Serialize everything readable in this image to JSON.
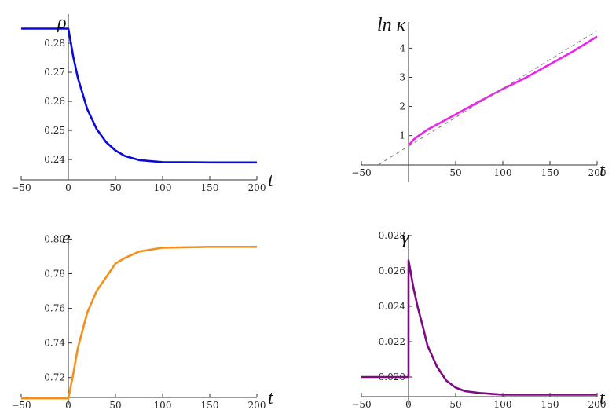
{
  "chart_data": [
    {
      "type": "line",
      "title": "",
      "ylabel": "ρ",
      "xlabel": "t",
      "xlim": [
        -50,
        200
      ],
      "ylim": [
        0.233,
        0.29
      ],
      "xticks": [
        "−50",
        "0",
        "50",
        "100",
        "150",
        "200"
      ],
      "yticks": [
        "0.24",
        "0.25",
        "0.26",
        "0.27",
        "0.28"
      ],
      "series": [
        {
          "color": "#0a0adb",
          "x": [
            -50,
            0,
            5,
            10,
            20,
            30,
            40,
            50,
            60,
            75,
            100,
            150,
            200
          ],
          "y": [
            0.285,
            0.285,
            0.2757,
            0.2682,
            0.2574,
            0.2505,
            0.246,
            0.2431,
            0.2412,
            0.2398,
            0.2391,
            0.239,
            0.239
          ]
        }
      ]
    },
    {
      "type": "line",
      "title": "",
      "ylabel": "ln κ",
      "xlabel": "t",
      "xlim": [
        -50,
        200
      ],
      "ylim": [
        -0.6,
        4.9
      ],
      "xticks": [
        "−50",
        "50",
        "100",
        "150",
        "200"
      ],
      "yticks": [
        "1",
        "2",
        "3",
        "4"
      ],
      "series": [
        {
          "color": "#ee22ee",
          "x": [
            0,
            5,
            10,
            20,
            30,
            50,
            75,
            100,
            125,
            150,
            175,
            200
          ],
          "y": [
            0.65,
            0.85,
            0.98,
            1.2,
            1.38,
            1.73,
            2.17,
            2.6,
            3.0,
            3.45,
            3.9,
            4.4
          ]
        },
        {
          "color": "#888888",
          "dashed": true,
          "x": [
            -32,
            200
          ],
          "y": [
            0.0,
            4.6
          ]
        }
      ]
    },
    {
      "type": "line",
      "title": "",
      "ylabel": "e",
      "xlabel": "t",
      "xlim": [
        -50,
        200
      ],
      "ylim": [
        0.704,
        0.802
      ],
      "xticks": [
        "−50",
        "0",
        "50",
        "100",
        "150",
        "200"
      ],
      "yticks": [
        "0.72",
        "0.74",
        "0.76",
        "0.78",
        "0.80"
      ],
      "series": [
        {
          "color": "#f39019",
          "x": [
            -50,
            0,
            5,
            10,
            20,
            30,
            40,
            50,
            60,
            75,
            100,
            150,
            200
          ],
          "y": [
            0.708,
            0.708,
            0.7215,
            0.7369,
            0.7574,
            0.77,
            0.7778,
            0.7859,
            0.7891,
            0.7928,
            0.795,
            0.7955,
            0.7955
          ]
        }
      ]
    },
    {
      "type": "line",
      "title": "",
      "ylabel": "γ",
      "xlabel": "t",
      "xlim": [
        -50,
        200
      ],
      "ylim": [
        0.0184,
        0.028
      ],
      "xticks": [
        "−50",
        "0",
        "50",
        "100",
        "150",
        "200"
      ],
      "yticks": [
        "0.020",
        "0.022",
        "0.024",
        "0.026",
        "0.028"
      ],
      "series": [
        {
          "color": "#7c0b80",
          "x": [
            -50,
            0,
            0,
            5,
            10,
            15,
            20,
            30,
            40,
            50,
            60,
            75,
            100,
            150,
            200
          ],
          "y": [
            0.02,
            0.02,
            0.0266,
            0.0251,
            0.0239,
            0.0229,
            0.0218,
            0.0206,
            0.0198,
            0.0194,
            0.0192,
            0.0191,
            0.019,
            0.019,
            0.019
          ]
        }
      ]
    }
  ]
}
